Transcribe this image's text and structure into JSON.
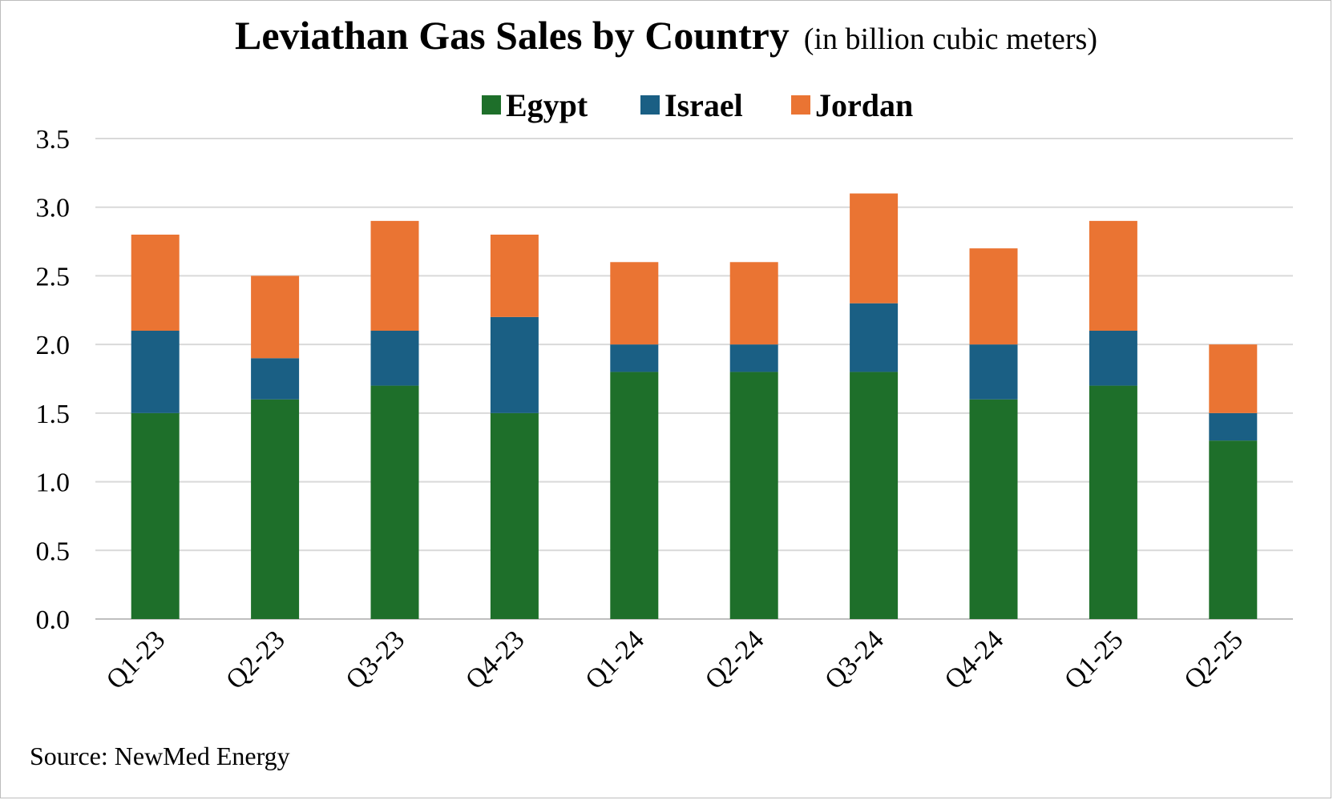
{
  "chart_data": {
    "type": "bar",
    "stacked": true,
    "title": "Leviathan Gas Sales by Country",
    "subtitle": "(in billion cubic meters)",
    "xlabel": "",
    "ylabel": "",
    "ylim": [
      0,
      3.5
    ],
    "yticks": [
      "0.0",
      "0.5",
      "1.0",
      "1.5",
      "2.0",
      "2.5",
      "3.0",
      "3.5"
    ],
    "grid": true,
    "legend_position": "top-center",
    "categories": [
      "Q1-23",
      "Q2-23",
      "Q3-23",
      "Q4-23",
      "Q1-24",
      "Q2-24",
      "Q3-24",
      "Q4-24",
      "Q1-25",
      "Q2-25"
    ],
    "series": [
      {
        "name": "Egypt",
        "color": "#1e6f2a",
        "values": [
          1.5,
          1.6,
          1.7,
          1.5,
          1.8,
          1.8,
          1.8,
          1.6,
          1.7,
          1.3
        ]
      },
      {
        "name": "Israel",
        "color": "#1a5f84",
        "values": [
          0.6,
          0.3,
          0.4,
          0.7,
          0.2,
          0.2,
          0.5,
          0.4,
          0.4,
          0.2
        ]
      },
      {
        "name": "Jordan",
        "color": "#ea7433",
        "values": [
          0.7,
          0.6,
          0.8,
          0.6,
          0.6,
          0.6,
          0.8,
          0.7,
          0.8,
          0.5
        ]
      }
    ],
    "source": "Source: NewMed Energy"
  }
}
